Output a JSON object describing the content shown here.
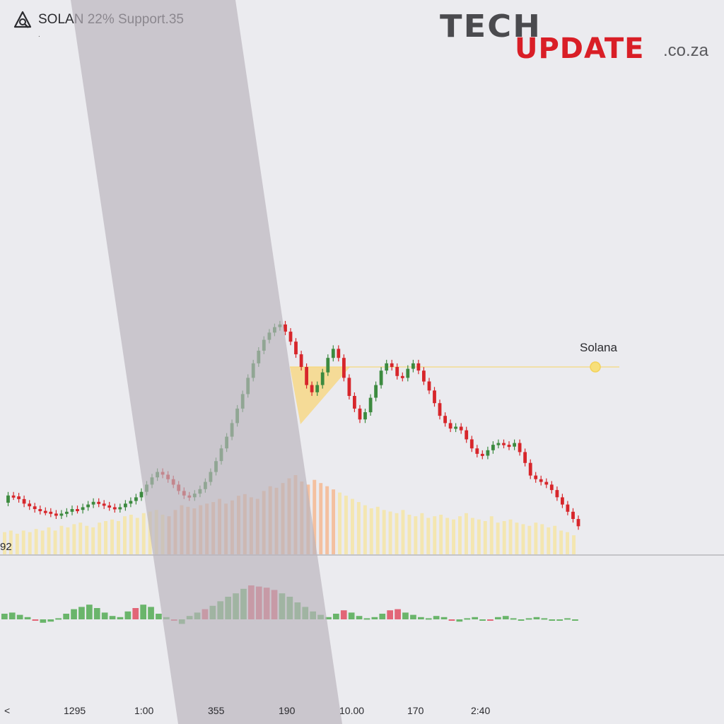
{
  "header": {
    "icon": "alert-triangle-icon",
    "title": "SOLAN 22% Support.35",
    "sub": "."
  },
  "logo": {
    "tech": "TECH",
    "update": "UPDATE",
    "tld": ".co.za"
  },
  "chart_data": {
    "type": "line",
    "title": "",
    "series_label": "Solana",
    "left_price_label": "92",
    "x_tick_labels": [
      "<",
      "1295",
      "1:00",
      "355",
      "190",
      "10.00",
      "170",
      "2:40"
    ],
    "colors": {
      "up": "#3c8a3f",
      "down": "#d7262b",
      "volume": "#f5e6a8",
      "volume_hot": "#f6b890",
      "macd_up": "#6ab56b",
      "macd_down": "#e26577",
      "band": "#b9b4bc",
      "support": "#f3dc92",
      "triangle": "#f8d57a"
    },
    "support_level": 0.82,
    "candles_close": [
      0.32,
      0.4,
      0.39,
      0.36,
      0.31,
      0.28,
      0.25,
      0.23,
      0.22,
      0.2,
      0.18,
      0.2,
      0.22,
      0.25,
      0.24,
      0.27,
      0.3,
      0.33,
      0.31,
      0.29,
      0.27,
      0.25,
      0.27,
      0.31,
      0.34,
      0.38,
      0.44,
      0.52,
      0.6,
      0.66,
      0.63,
      0.58,
      0.52,
      0.45,
      0.4,
      0.38,
      0.42,
      0.47,
      0.55,
      0.66,
      0.78,
      0.92,
      1.05,
      1.2,
      1.36,
      1.52,
      1.7,
      1.86,
      2.0,
      2.12,
      2.2,
      2.26,
      2.29,
      2.21,
      2.1,
      1.96,
      1.82,
      1.62,
      1.54,
      1.62,
      1.76,
      1.92,
      2.02,
      1.92,
      1.7,
      1.5,
      1.36,
      1.24,
      1.32,
      1.48,
      1.62,
      1.78,
      1.86,
      1.82,
      1.72,
      1.7,
      1.8,
      1.86,
      1.78,
      1.66,
      1.56,
      1.42,
      1.28,
      1.2,
      1.14,
      1.16,
      1.12,
      1.02,
      0.92,
      0.86,
      0.84,
      0.9,
      0.96,
      0.98,
      0.96,
      0.94,
      0.98,
      0.88,
      0.76,
      0.62,
      0.58,
      0.55,
      0.52,
      0.46,
      0.38,
      0.3,
      0.22,
      0.14,
      0.06
    ],
    "volume": [
      0.28,
      0.3,
      0.26,
      0.3,
      0.28,
      0.32,
      0.3,
      0.34,
      0.3,
      0.36,
      0.34,
      0.38,
      0.4,
      0.36,
      0.34,
      0.4,
      0.42,
      0.44,
      0.42,
      0.48,
      0.5,
      0.46,
      0.52,
      0.54,
      0.56,
      0.5,
      0.48,
      0.56,
      0.62,
      0.6,
      0.58,
      0.62,
      0.64,
      0.66,
      0.7,
      0.64,
      0.68,
      0.74,
      0.76,
      0.72,
      0.7,
      0.8,
      0.86,
      0.84,
      0.9,
      0.96,
      1.0,
      0.92,
      0.88,
      0.94,
      0.9,
      0.86,
      0.82,
      0.78,
      0.74,
      0.7,
      0.66,
      0.62,
      0.58,
      0.6,
      0.56,
      0.54,
      0.52,
      0.56,
      0.5,
      0.48,
      0.52,
      0.46,
      0.48,
      0.5,
      0.46,
      0.44,
      0.48,
      0.52,
      0.46,
      0.44,
      0.42,
      0.48,
      0.4,
      0.42,
      0.44,
      0.4,
      0.38,
      0.36,
      0.4,
      0.38,
      0.34,
      0.36,
      0.3,
      0.28,
      0.24
    ],
    "macd": [
      0.1,
      0.12,
      0.08,
      0.04,
      -0.02,
      -0.06,
      -0.04,
      0.02,
      0.1,
      0.18,
      0.22,
      0.26,
      0.2,
      0.12,
      0.06,
      0.04,
      0.14,
      0.2,
      0.26,
      0.22,
      0.1,
      0.04,
      -0.02,
      -0.08,
      0.06,
      0.12,
      0.18,
      0.24,
      0.32,
      0.4,
      0.46,
      0.54,
      0.6,
      0.58,
      0.56,
      0.52,
      0.46,
      0.4,
      0.3,
      0.22,
      0.14,
      0.08,
      0.04,
      0.1,
      0.16,
      0.12,
      0.06,
      0.02,
      0.04,
      0.1,
      0.16,
      0.18,
      0.12,
      0.08,
      0.04,
      0.02,
      0.06,
      0.04,
      -0.02,
      -0.04,
      0.02,
      0.04,
      0.0,
      -0.02,
      0.04,
      0.06,
      0.02,
      0.0,
      0.02,
      0.04,
      0.02,
      -0.02,
      0.0,
      0.02,
      0.0
    ]
  }
}
